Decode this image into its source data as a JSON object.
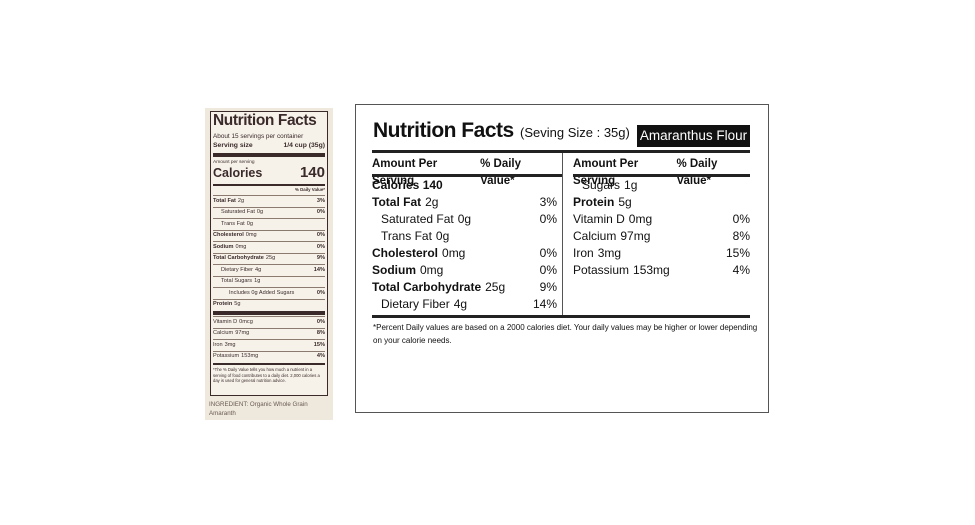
{
  "product_label": {
    "title": "Nutrition Facts",
    "servings": "About 15 servings per container",
    "serving_size": {
      "label": "Serving size",
      "value": "1/4 cup (35g)"
    },
    "amount_per_serving": "Amount per serving",
    "calories": {
      "label": "Calories",
      "value": "140"
    },
    "daily_value_header": "% Daily Value*",
    "rows": [
      {
        "label": "Total Fat",
        "amount": "2g",
        "dv": "3%",
        "bold": true,
        "indent": 0
      },
      {
        "label": "Saturated Fat",
        "amount": "0g",
        "dv": "0%",
        "bold": false,
        "indent": 1
      },
      {
        "label": "Trans Fat",
        "amount": "0g",
        "bold": false,
        "indent": 1
      },
      {
        "label": "Cholesterol",
        "amount": "0mg",
        "dv": "0%",
        "bold": true,
        "indent": 0
      },
      {
        "label": "Sodium",
        "amount": "0mg",
        "dv": "0%",
        "bold": true,
        "indent": 0
      },
      {
        "label": "Total Carbohydrate",
        "amount": "25g",
        "dv": "9%",
        "bold": true,
        "indent": 0
      },
      {
        "label": "Dietary Fiber",
        "amount": "4g",
        "dv": "14%",
        "bold": false,
        "indent": 1
      },
      {
        "label": "Total Sugars",
        "amount": "1g",
        "bold": false,
        "indent": 1
      },
      {
        "label": "Includes 0g Added Sugars",
        "dv": "0%",
        "bold": false,
        "indent": 2
      },
      {
        "label": "Protein",
        "amount": "5g",
        "bold": true,
        "indent": 0
      }
    ],
    "vitamins": [
      {
        "label": "Vitamin D",
        "amount": "0mcg",
        "dv": "0%"
      },
      {
        "label": "Calcium",
        "amount": "97mg",
        "dv": "8%"
      },
      {
        "label": "Iron",
        "amount": "3mg",
        "dv": "15%"
      },
      {
        "label": "Potassium",
        "amount": "153mg",
        "dv": "4%"
      }
    ],
    "footnote": "*The % Daily Value tells you how much a nutrient in a serving of food contributes to a daily diet. 2,000 calories a day is used for general nutrition advice.",
    "ingredient": "INGREDIENT: Organic Whole Grain Amaranth"
  },
  "facts_panel": {
    "title": "Nutrition Facts",
    "serving_size": "(Seving Size : 35g)",
    "product": "Amaranthus Flour",
    "columns": [
      {
        "header": {
          "amount": "Amount Per Serving",
          "dv": "% Daily Value*"
        },
        "rows": [
          {
            "label": "Calories 140",
            "bold": true,
            "indent": 0
          },
          {
            "label": "Total Fat",
            "amount": "2g",
            "dv": "3%",
            "bold": true,
            "indent": 0
          },
          {
            "label": "Saturated Fat",
            "amount": "0g",
            "dv": "0%",
            "bold": false,
            "indent": 1
          },
          {
            "label": "Trans Fat",
            "amount": "0g",
            "bold": false,
            "indent": 1
          },
          {
            "label": "Cholesterol",
            "amount": "0mg",
            "dv": "0%",
            "bold": true,
            "indent": 0
          },
          {
            "label": "Sodium",
            "amount": "0mg",
            "dv": "0%",
            "bold": true,
            "indent": 0
          },
          {
            "label": "Total Carbohydrate",
            "amount": "25g",
            "dv": "9%",
            "bold": true,
            "indent": 0
          },
          {
            "label": "Dietary Fiber",
            "amount": "4g",
            "dv": "14%",
            "bold": false,
            "indent": 1
          }
        ]
      },
      {
        "header": {
          "amount": "Amount Per Serving",
          "dv": "% Daily Value*"
        },
        "rows": [
          {
            "label": "Sugars",
            "amount": "1g",
            "bold": false,
            "indent": 1
          },
          {
            "label": "Protein",
            "amount": "5g",
            "bold": true,
            "indent": 0
          },
          {
            "label": "Vitamin D",
            "amount": "0mg",
            "dv": "0%",
            "bold": false,
            "indent": 0
          },
          {
            "label": "Calcium",
            "amount": "97mg",
            "dv": "8%",
            "bold": false,
            "indent": 0
          },
          {
            "label": "Iron",
            "amount": "3mg",
            "dv": "15%",
            "bold": false,
            "indent": 0
          },
          {
            "label": "Potassium",
            "amount": "153mg",
            "dv": "4%",
            "bold": false,
            "indent": 0
          }
        ]
      }
    ],
    "footnote": "*Percent Daily values are based on a 2000 calories diet. Your daily values may be higher or lower depending on your calorie needs."
  }
}
